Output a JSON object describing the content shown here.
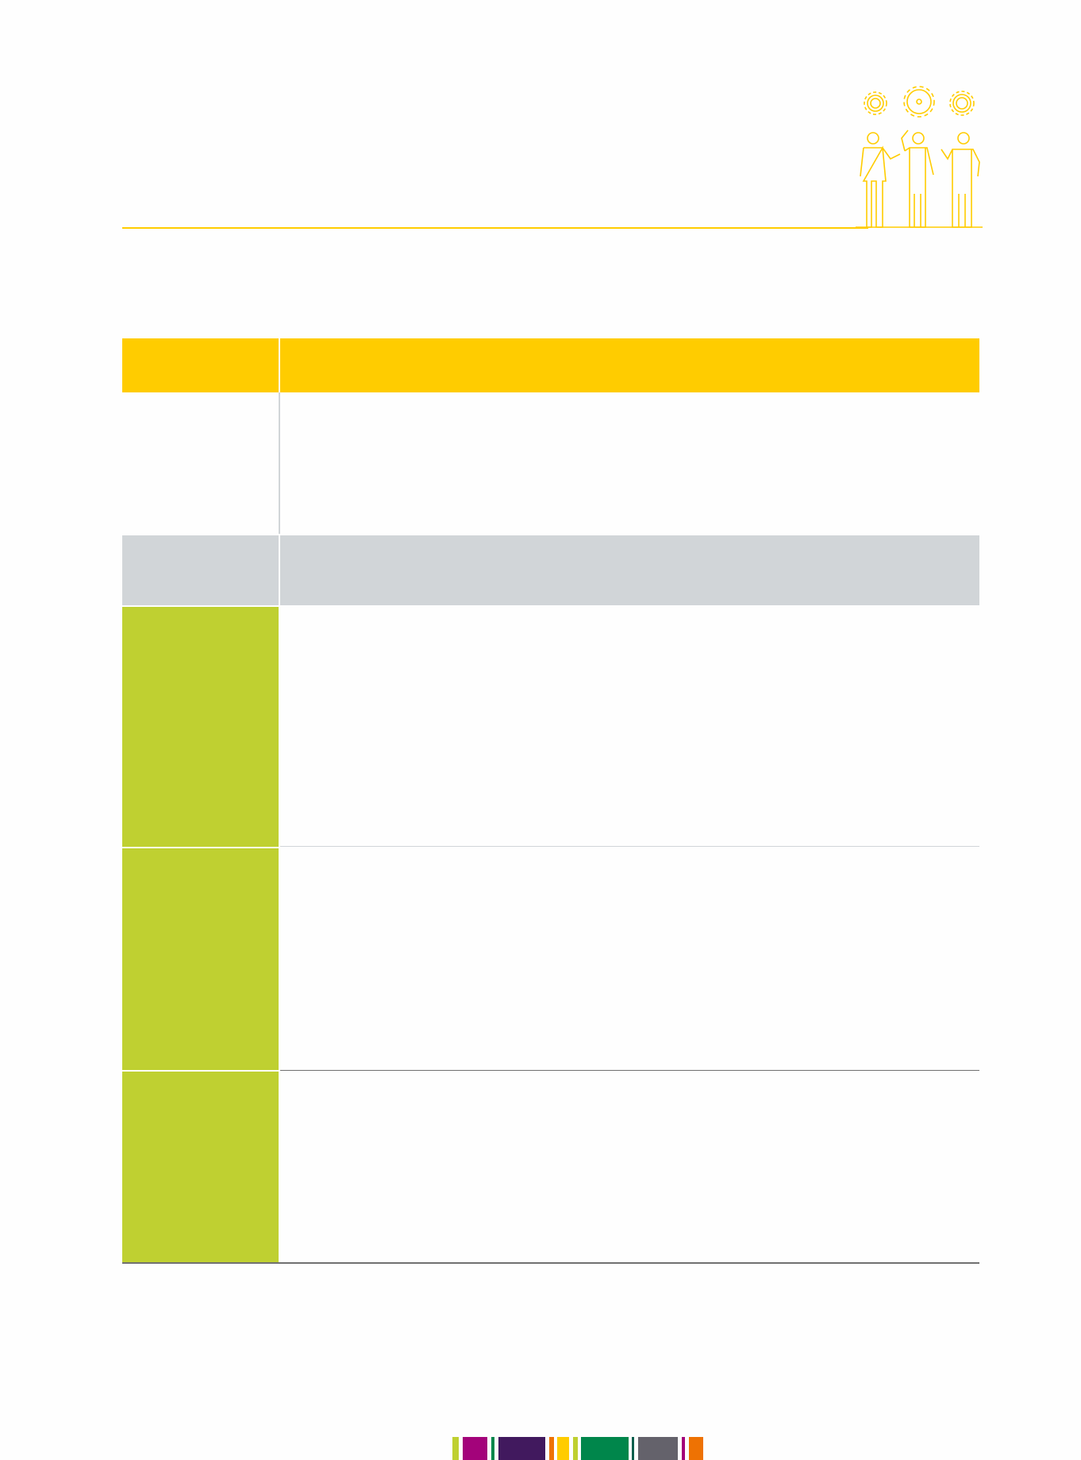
{
  "colors": {
    "header": "#ffcc00",
    "grey_row": "#d1d5d8",
    "green_label": "#bfd031",
    "accent_line": "#ffcc00",
    "divider": "#d1d5d8",
    "dark_divider": "#707070"
  },
  "header_icon": "team-gears-icon",
  "footer_bar_colors": [
    "#bfd031",
    "#a3037a",
    "#00864b",
    "#41195e",
    "#ee7203",
    "#ffcc00",
    "#bfd031",
    "#00864b",
    "#0b5e4c",
    "#64626b",
    "#a3037a",
    "#ee7203"
  ]
}
